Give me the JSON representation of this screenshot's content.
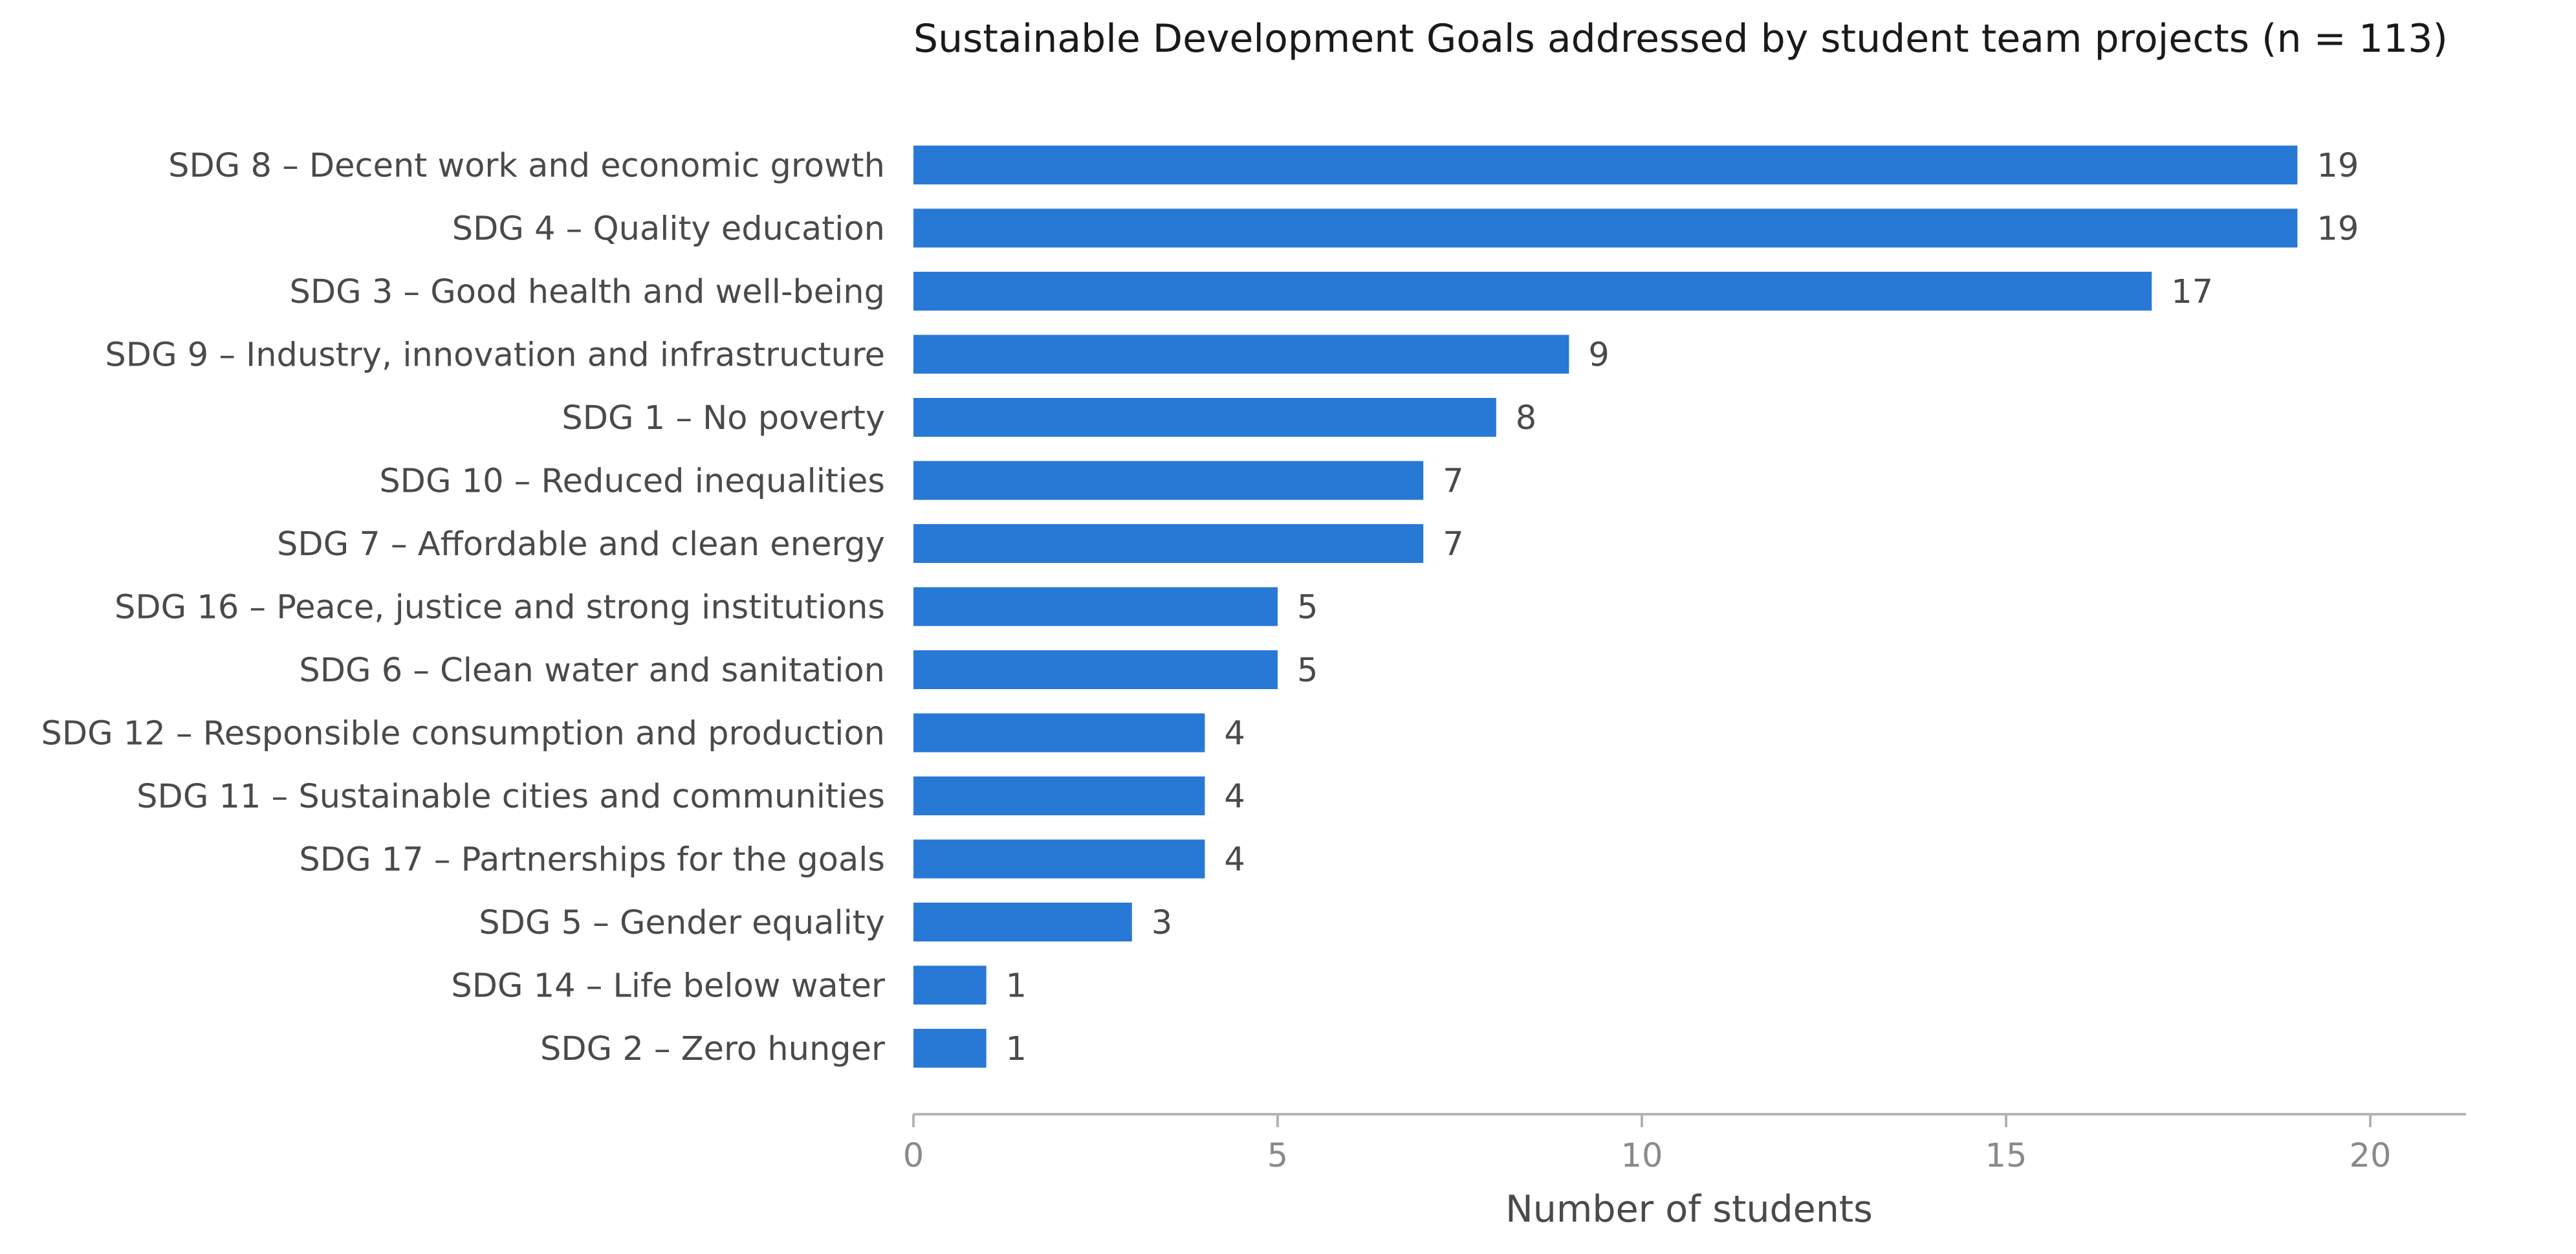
{
  "chart_data": {
    "type": "bar",
    "orientation": "horizontal",
    "title": "Sustainable Development Goals addressed by student team projects (n = 113)",
    "xlabel": "Number of students",
    "ylabel": "",
    "xlim": [
      0,
      21.3
    ],
    "xticks": [
      0,
      5,
      10,
      15,
      20
    ],
    "xtick_labels": [
      "0",
      "5",
      "10",
      "15",
      "20"
    ],
    "grid": false,
    "legend": "none",
    "categories": [
      "SDG 8 – Decent work and economic growth",
      "SDG 4 – Quality education",
      "SDG 3 – Good health and well-being",
      "SDG 9 – Industry, innovation and infrastructure",
      "SDG 1 – No poverty",
      "SDG 10 – Reduced inequalities",
      "SDG 7 – Affordable and clean energy",
      "SDG 16 – Peace, justice and strong institutions",
      "SDG 6 – Clean water and sanitation",
      "SDG 12 – Responsible consumption and production",
      "SDG 11 – Sustainable cities and communities",
      "SDG 17 – Partnerships for the goals",
      "SDG 5 – Gender equality",
      "SDG 14 – Life below water",
      "SDG 2 – Zero hunger"
    ],
    "values": [
      19,
      19,
      17,
      9,
      8,
      7,
      7,
      5,
      5,
      4,
      4,
      4,
      3,
      1,
      1
    ],
    "data_labels": [
      "19",
      "19",
      "17",
      "9",
      "8",
      "7",
      "7",
      "5",
      "5",
      "4",
      "4",
      "4",
      "3",
      "1",
      "1"
    ],
    "colors": {
      "bar": "#2878d6",
      "axis": "#b5b5b0"
    }
  }
}
